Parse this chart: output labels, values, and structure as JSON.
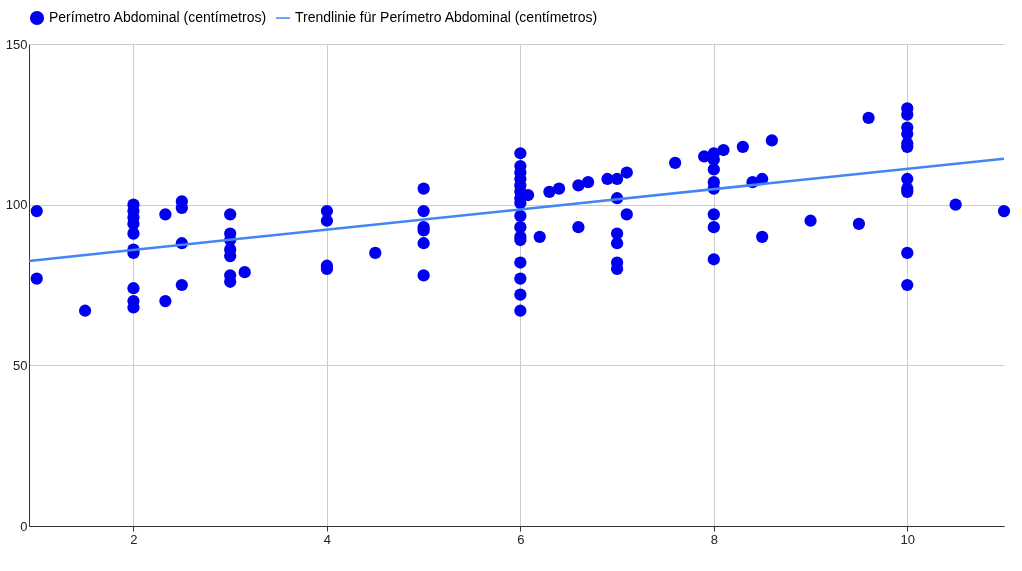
{
  "chart_data": {
    "type": "scatter",
    "xlim": [
      0.92,
      11
    ],
    "ylim": [
      0,
      150
    ],
    "xticks": [
      2,
      4,
      6,
      8,
      10
    ],
    "yticks": [
      0,
      50,
      100,
      150
    ],
    "grid": true,
    "legend": "top",
    "series": [
      {
        "name": "Perímetro Abdominal (centímetros)",
        "color": "#0000ee",
        "marker": "circle",
        "x": [
          1,
          1,
          1.5,
          2,
          2,
          2,
          2,
          2,
          2,
          2,
          2,
          2,
          2,
          2.33,
          2.33,
          2.5,
          2.5,
          2.5,
          2.5,
          3,
          3,
          3,
          3,
          3,
          3,
          3,
          3.15,
          4,
          4,
          4,
          4,
          4.5,
          5,
          5,
          5,
          5,
          5,
          5,
          6,
          6,
          6,
          6,
          6,
          6,
          6,
          6,
          6,
          6,
          6,
          6,
          6,
          6,
          6,
          6,
          6.08,
          6.2,
          6.3,
          6.4,
          6.6,
          6.6,
          6.7,
          6.9,
          7,
          7,
          7,
          7,
          7,
          7,
          7.1,
          7.1,
          7.6,
          7.9,
          8,
          8,
          8,
          8,
          8,
          8,
          8,
          8,
          8.1,
          8.3,
          8.4,
          8.5,
          8.5,
          8.6,
          9,
          9.5,
          9.6,
          10,
          10,
          10,
          10,
          10,
          10,
          10,
          10,
          10,
          10,
          10,
          10.5,
          11
        ],
        "values": [
          98,
          77,
          67,
          100,
          98,
          96,
          94,
          91,
          86,
          85,
          74,
          70,
          68,
          97,
          70,
          101,
          99,
          88,
          75,
          97,
          91,
          89,
          86,
          84,
          78,
          76,
          79,
          98,
          95,
          81,
          80,
          85,
          105,
          98,
          93,
          92,
          88,
          78,
          116,
          112,
          110,
          108,
          106,
          104,
          102,
          100.5,
          96.5,
          93,
          90,
          89,
          82,
          77,
          72,
          67,
          103,
          90,
          104,
          105,
          106,
          93,
          107,
          108,
          108,
          102,
          91,
          88,
          82,
          80,
          110,
          97,
          113,
          115,
          116,
          114,
          111,
          107,
          105,
          97,
          93,
          83,
          117,
          118,
          107,
          108,
          90,
          120,
          95,
          94,
          127,
          130,
          128,
          124,
          122,
          119,
          118,
          108,
          105,
          104,
          85,
          75,
          100,
          98
        ]
      },
      {
        "name": "Trendlinie für Perímetro Abdominal (centímetros)",
        "color": "#4285f4",
        "type": "line",
        "marker": "none",
        "x": [
          0.92,
          11
        ],
        "values": [
          82.5,
          114.3
        ]
      }
    ]
  }
}
